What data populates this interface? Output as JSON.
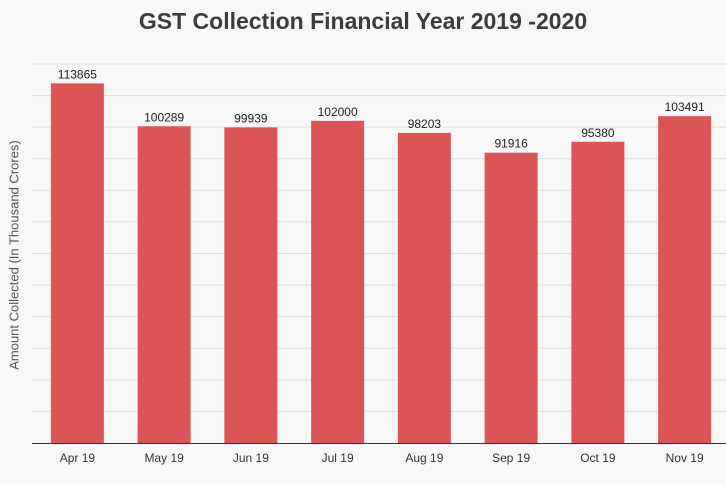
{
  "chart_data": {
    "type": "bar",
    "title": "GST Collection Financial Year 2019 -2020",
    "ylabel": "Amount Collected (In Thousand Crores)",
    "xlabel": "",
    "categories": [
      "Apr 19",
      "May 19",
      "Jun 19",
      "Jul 19",
      "Aug 19",
      "Sep 19",
      "Oct 19",
      "Nov 19"
    ],
    "values": [
      113865,
      100289,
      99939,
      102000,
      98203,
      91916,
      95380,
      103491
    ],
    "ylim": [
      0,
      120000
    ],
    "grid": true,
    "bar_color": "#db5557"
  }
}
